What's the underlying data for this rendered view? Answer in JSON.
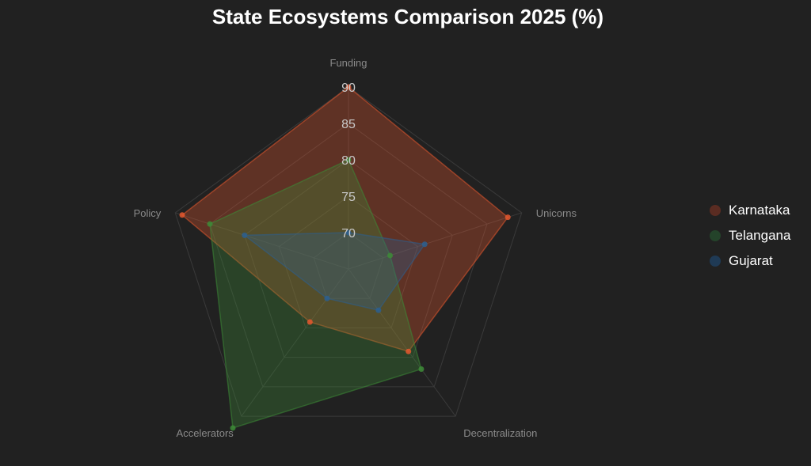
{
  "chart_data": {
    "type": "radar",
    "title": "State Ecosystems Comparison 2025 (%)",
    "axes": [
      "Funding",
      "Unicorns",
      "Decentralization",
      "Accelerators",
      "Policy"
    ],
    "ticks": [
      70,
      75,
      80,
      85,
      90
    ],
    "range": [
      65,
      90
    ],
    "grid": true,
    "legend_position": "right",
    "series": [
      {
        "name": "Karnataka",
        "values": [
          90,
          88,
          79,
          74,
          89
        ],
        "color": "#e4572e"
      },
      {
        "name": "Telangana",
        "values": [
          80,
          71,
          82,
          92,
          85
        ],
        "color": "#3d8b37"
      },
      {
        "name": "Gujarat",
        "values": [
          70,
          76,
          72,
          70,
          80
        ],
        "color": "#2b5f8f"
      }
    ]
  }
}
